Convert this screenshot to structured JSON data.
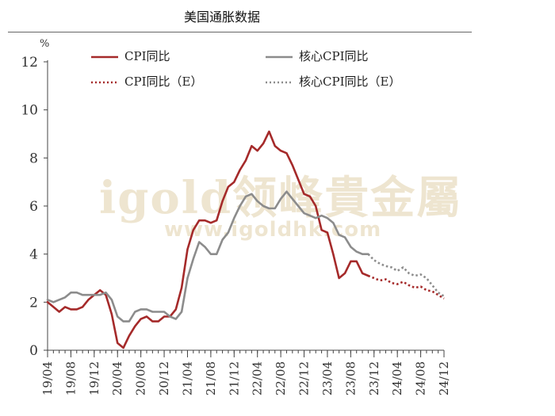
{
  "header": {
    "title": "美国通胀数据",
    "unit": "%"
  },
  "watermark": {
    "logo": "igold领峰貴金屬",
    "site": "www.igoldhk.com"
  },
  "legend": [
    {
      "label": "CPI同比",
      "color": "#a52a2a",
      "style": "solid"
    },
    {
      "label": "核心CPI同比",
      "color": "#8c8c8c",
      "style": "solid"
    },
    {
      "label": "CPI同比（E）",
      "color": "#a52a2a",
      "style": "dotted"
    },
    {
      "label": "核心CPI同比（E）",
      "color": "#8c8c8c",
      "style": "dotted"
    }
  ],
  "chart_data": {
    "type": "line",
    "title": "美国通胀数据",
    "ylabel": "%",
    "ylim": [
      0,
      12
    ],
    "yticks": [
      "0",
      "2",
      "4",
      "6",
      "8",
      "10",
      "12"
    ],
    "x_start": "2019-04",
    "x_end": "2024-12",
    "xtick_labels": [
      "19/04",
      "19/08",
      "19/12",
      "20/04",
      "20/08",
      "20/12",
      "21/04",
      "21/08",
      "21/12",
      "22/04",
      "22/08",
      "22/12",
      "23/04",
      "23/08",
      "23/12",
      "24/04",
      "24/08",
      "24/12"
    ],
    "grid": false,
    "legend_position": "top",
    "series": [
      {
        "name": "CPI同比",
        "color": "#a52a2a",
        "style": "solid",
        "points": [
          [
            "2019-04",
            2.0
          ],
          [
            "2019-05",
            1.8
          ],
          [
            "2019-06",
            1.6
          ],
          [
            "2019-07",
            1.8
          ],
          [
            "2019-08",
            1.7
          ],
          [
            "2019-09",
            1.7
          ],
          [
            "2019-10",
            1.8
          ],
          [
            "2019-11",
            2.1
          ],
          [
            "2019-12",
            2.3
          ],
          [
            "2020-01",
            2.5
          ],
          [
            "2020-02",
            2.3
          ],
          [
            "2020-03",
            1.5
          ],
          [
            "2020-04",
            0.3
          ],
          [
            "2020-05",
            0.1
          ],
          [
            "2020-06",
            0.6
          ],
          [
            "2020-07",
            1.0
          ],
          [
            "2020-08",
            1.3
          ],
          [
            "2020-09",
            1.4
          ],
          [
            "2020-10",
            1.2
          ],
          [
            "2020-11",
            1.2
          ],
          [
            "2020-12",
            1.4
          ],
          [
            "2021-01",
            1.4
          ],
          [
            "2021-02",
            1.7
          ],
          [
            "2021-03",
            2.6
          ],
          [
            "2021-04",
            4.2
          ],
          [
            "2021-05",
            5.0
          ],
          [
            "2021-06",
            5.4
          ],
          [
            "2021-07",
            5.4
          ],
          [
            "2021-08",
            5.3
          ],
          [
            "2021-09",
            5.4
          ],
          [
            "2021-10",
            6.2
          ],
          [
            "2021-11",
            6.8
          ],
          [
            "2021-12",
            7.0
          ],
          [
            "2022-01",
            7.5
          ],
          [
            "2022-02",
            7.9
          ],
          [
            "2022-03",
            8.5
          ],
          [
            "2022-04",
            8.3
          ],
          [
            "2022-05",
            8.6
          ],
          [
            "2022-06",
            9.1
          ],
          [
            "2022-07",
            8.5
          ],
          [
            "2022-08",
            8.3
          ],
          [
            "2022-09",
            8.2
          ],
          [
            "2022-10",
            7.7
          ],
          [
            "2022-11",
            7.1
          ],
          [
            "2022-12",
            6.5
          ],
          [
            "2023-01",
            6.4
          ],
          [
            "2023-02",
            6.0
          ],
          [
            "2023-03",
            5.0
          ],
          [
            "2023-04",
            4.9
          ],
          [
            "2023-05",
            4.0
          ],
          [
            "2023-06",
            3.0
          ],
          [
            "2023-07",
            3.2
          ],
          [
            "2023-08",
            3.7
          ],
          [
            "2023-09",
            3.7
          ],
          [
            "2023-10",
            3.2
          ],
          [
            "2023-11",
            3.1
          ]
        ]
      },
      {
        "name": "核心CPI同比",
        "color": "#8c8c8c",
        "style": "solid",
        "points": [
          [
            "2019-04",
            2.1
          ],
          [
            "2019-05",
            2.0
          ],
          [
            "2019-06",
            2.1
          ],
          [
            "2019-07",
            2.2
          ],
          [
            "2019-08",
            2.4
          ],
          [
            "2019-09",
            2.4
          ],
          [
            "2019-10",
            2.3
          ],
          [
            "2019-11",
            2.3
          ],
          [
            "2019-12",
            2.3
          ],
          [
            "2020-01",
            2.3
          ],
          [
            "2020-02",
            2.4
          ],
          [
            "2020-03",
            2.1
          ],
          [
            "2020-04",
            1.4
          ],
          [
            "2020-05",
            1.2
          ],
          [
            "2020-06",
            1.2
          ],
          [
            "2020-07",
            1.6
          ],
          [
            "2020-08",
            1.7
          ],
          [
            "2020-09",
            1.7
          ],
          [
            "2020-10",
            1.6
          ],
          [
            "2020-11",
            1.6
          ],
          [
            "2020-12",
            1.6
          ],
          [
            "2021-01",
            1.4
          ],
          [
            "2021-02",
            1.3
          ],
          [
            "2021-03",
            1.6
          ],
          [
            "2021-04",
            3.0
          ],
          [
            "2021-05",
            3.8
          ],
          [
            "2021-06",
            4.5
          ],
          [
            "2021-07",
            4.3
          ],
          [
            "2021-08",
            4.0
          ],
          [
            "2021-09",
            4.0
          ],
          [
            "2021-10",
            4.6
          ],
          [
            "2021-11",
            4.9
          ],
          [
            "2021-12",
            5.5
          ],
          [
            "2022-01",
            6.0
          ],
          [
            "2022-02",
            6.4
          ],
          [
            "2022-03",
            6.5
          ],
          [
            "2022-04",
            6.2
          ],
          [
            "2022-05",
            6.0
          ],
          [
            "2022-06",
            5.9
          ],
          [
            "2022-07",
            5.9
          ],
          [
            "2022-08",
            6.3
          ],
          [
            "2022-09",
            6.6
          ],
          [
            "2022-10",
            6.3
          ],
          [
            "2022-11",
            6.0
          ],
          [
            "2022-12",
            5.7
          ],
          [
            "2023-01",
            5.6
          ],
          [
            "2023-02",
            5.5
          ],
          [
            "2023-03",
            5.6
          ],
          [
            "2023-04",
            5.5
          ],
          [
            "2023-05",
            5.3
          ],
          [
            "2023-06",
            4.8
          ],
          [
            "2023-07",
            4.7
          ],
          [
            "2023-08",
            4.3
          ],
          [
            "2023-09",
            4.1
          ],
          [
            "2023-10",
            4.0
          ],
          [
            "2023-11",
            4.0
          ]
        ]
      },
      {
        "name": "CPI同比（E）",
        "color": "#a52a2a",
        "style": "dotted",
        "points": [
          [
            "2023-11",
            3.1
          ],
          [
            "2023-12",
            3.0
          ],
          [
            "2024-01",
            2.9
          ],
          [
            "2024-02",
            2.95
          ],
          [
            "2024-03",
            2.8
          ],
          [
            "2024-04",
            2.75
          ],
          [
            "2024-05",
            2.85
          ],
          [
            "2024-06",
            2.7
          ],
          [
            "2024-07",
            2.6
          ],
          [
            "2024-08",
            2.65
          ],
          [
            "2024-09",
            2.5
          ],
          [
            "2024-10",
            2.45
          ],
          [
            "2024-11",
            2.3
          ],
          [
            "2024-12",
            2.15
          ]
        ]
      },
      {
        "name": "核心CPI同比（E）",
        "color": "#8c8c8c",
        "style": "dotted",
        "points": [
          [
            "2023-11",
            4.0
          ],
          [
            "2023-12",
            3.75
          ],
          [
            "2024-01",
            3.6
          ],
          [
            "2024-02",
            3.5
          ],
          [
            "2024-03",
            3.45
          ],
          [
            "2024-04",
            3.3
          ],
          [
            "2024-05",
            3.45
          ],
          [
            "2024-06",
            3.2
          ],
          [
            "2024-07",
            3.1
          ],
          [
            "2024-08",
            3.15
          ],
          [
            "2024-09",
            3.0
          ],
          [
            "2024-10",
            2.7
          ],
          [
            "2024-11",
            2.4
          ],
          [
            "2024-12",
            2.25
          ]
        ]
      }
    ]
  }
}
